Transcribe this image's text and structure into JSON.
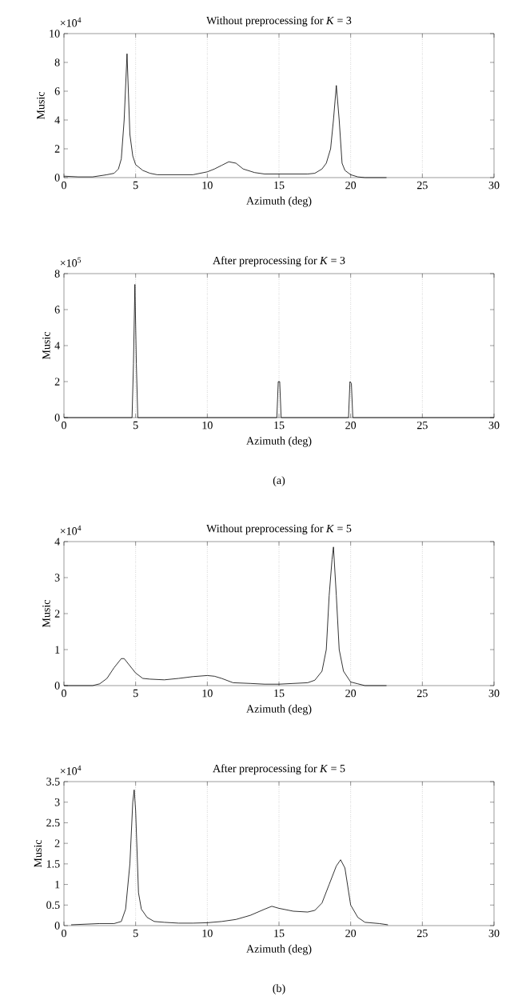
{
  "chart_data": [
    {
      "type": "line",
      "title": "Without preprocessing for *K* = 3",
      "xlabel": "Azimuth (deg)",
      "ylabel": "Music",
      "color": "#000000",
      "line_style": "solid",
      "grid": false,
      "x": [
        0,
        1,
        2,
        3,
        3.5,
        3.8,
        4.0,
        4.2,
        4.4,
        4.6,
        4.8,
        5.0,
        5.5,
        6,
        6.5,
        8,
        9,
        10,
        10.5,
        11,
        11.5,
        12,
        12.5,
        13.3,
        14,
        15,
        16,
        17,
        17.5,
        18,
        18.3,
        18.6,
        18.8,
        19.0,
        19.2,
        19.4,
        19.6,
        20,
        20.5,
        21,
        22.5
      ],
      "values": [
        0.1,
        0.05,
        0.05,
        0.2,
        0.3,
        0.6,
        1.3,
        4,
        8.6,
        3,
        1.5,
        0.9,
        0.5,
        0.3,
        0.2,
        0.2,
        0.2,
        0.4,
        0.6,
        0.85,
        1.1,
        1.0,
        0.6,
        0.35,
        0.25,
        0.25,
        0.25,
        0.25,
        0.3,
        0.6,
        1.0,
        2,
        4,
        6.4,
        4,
        1,
        0.5,
        0.2,
        0.05,
        0,
        0
      ],
      "xlim": [
        0,
        30
      ],
      "xticks": [
        0,
        5,
        10,
        15,
        20,
        25,
        30
      ],
      "ylim": [
        0,
        10
      ],
      "yticks": [
        0,
        2,
        4,
        6,
        8,
        10
      ],
      "ref_lines": [
        {
          "axis": "x",
          "value": 5,
          "line_style": "dotted"
        },
        {
          "axis": "x",
          "value": 10,
          "line_style": "dotted"
        },
        {
          "axis": "x",
          "value": 15,
          "line_style": "dotted"
        },
        {
          "axis": "x",
          "value": 20,
          "line_style": "dotted"
        },
        {
          "axis": "x",
          "value": 25,
          "line_style": "dotted"
        }
      ],
      "annotations": [
        "×10$^{4}$"
      ]
    },
    {
      "type": "line",
      "title": "After preprocessing for *K* = 3",
      "xlabel": "Azimuth (deg)",
      "ylabel": "Music",
      "color": "#000000",
      "line_style": "solid",
      "grid": false,
      "x": [
        0,
        4.75,
        4.85,
        4.95,
        5.05,
        5.15,
        14.85,
        14.95,
        15.05,
        15.15,
        19.85,
        19.95,
        20.05,
        20.15,
        30
      ],
      "values": [
        0,
        0,
        3,
        7.4,
        3,
        0,
        0,
        2,
        2,
        0,
        0,
        2,
        1.9,
        0,
        0
      ],
      "xlim": [
        0,
        30
      ],
      "xticks": [
        0,
        5,
        10,
        15,
        20,
        25,
        30
      ],
      "ylim": [
        0,
        8
      ],
      "yticks": [
        0,
        2,
        4,
        6,
        8
      ],
      "ref_lines": [
        {
          "axis": "x",
          "value": 5,
          "line_style": "dotted"
        },
        {
          "axis": "x",
          "value": 10,
          "line_style": "dotted"
        },
        {
          "axis": "x",
          "value": 15,
          "line_style": "dotted"
        },
        {
          "axis": "x",
          "value": 20,
          "line_style": "dotted"
        },
        {
          "axis": "x",
          "value": 25,
          "line_style": "dotted"
        }
      ],
      "annotations": [
        "×10$^{5}$",
        "(a)"
      ]
    },
    {
      "type": "line",
      "title": "Without preprocessing for *K* = 5",
      "xlabel": "Azimuth (deg)",
      "ylabel": "Music",
      "color": "#000000",
      "line_style": "solid",
      "grid": false,
      "x": [
        0,
        2,
        2.5,
        3,
        3.5,
        4,
        4.2,
        4.5,
        5,
        5.5,
        6,
        7,
        8,
        9,
        10,
        10.5,
        11,
        11.8,
        13,
        14,
        15,
        16,
        17,
        17.5,
        18,
        18.3,
        18.5,
        18.7,
        18.8,
        19,
        19.2,
        19.5,
        20,
        20.5,
        21,
        22.5
      ],
      "values": [
        0,
        0,
        0.05,
        0.2,
        0.5,
        0.75,
        0.75,
        0.6,
        0.35,
        0.2,
        0.18,
        0.16,
        0.2,
        0.25,
        0.28,
        0.26,
        0.2,
        0.08,
        0.06,
        0.04,
        0.04,
        0.06,
        0.08,
        0.15,
        0.4,
        1,
        2.5,
        3.5,
        3.85,
        2.5,
        1,
        0.4,
        0.1,
        0.05,
        0,
        0
      ],
      "xlim": [
        0,
        30
      ],
      "xticks": [
        0,
        5,
        10,
        15,
        20,
        25,
        30
      ],
      "ylim": [
        0,
        4
      ],
      "yticks": [
        0,
        1,
        2,
        3,
        4
      ],
      "ref_lines": [
        {
          "axis": "x",
          "value": 5,
          "line_style": "dotted"
        },
        {
          "axis": "x",
          "value": 10,
          "line_style": "dotted"
        },
        {
          "axis": "x",
          "value": 15,
          "line_style": "dotted"
        },
        {
          "axis": "x",
          "value": 20,
          "line_style": "dotted"
        },
        {
          "axis": "x",
          "value": 25,
          "line_style": "dotted"
        }
      ],
      "annotations": [
        "×10$^{4}$"
      ]
    },
    {
      "type": "line",
      "title": "After preprocessing for *K* = 5",
      "xlabel": "Azimuth (deg)",
      "ylabel": "Music",
      "color": "#000000",
      "line_style": "solid",
      "grid": false,
      "x": [
        0.5,
        2.5,
        3.5,
        4,
        4.3,
        4.6,
        4.8,
        4.9,
        5.0,
        5.2,
        5.4,
        5.8,
        6.3,
        7,
        8,
        9,
        10,
        11,
        12,
        13,
        14,
        14.5,
        15,
        16,
        17,
        17.5,
        18,
        18.5,
        19,
        19.3,
        19.6,
        20,
        20.5,
        21,
        22,
        22.6
      ],
      "values": [
        0.02,
        0.05,
        0.05,
        0.1,
        0.4,
        1.5,
        3.0,
        3.3,
        2.8,
        0.8,
        0.4,
        0.2,
        0.1,
        0.08,
        0.06,
        0.06,
        0.07,
        0.1,
        0.15,
        0.25,
        0.4,
        0.47,
        0.42,
        0.35,
        0.33,
        0.37,
        0.55,
        1.0,
        1.45,
        1.6,
        1.4,
        0.5,
        0.2,
        0.08,
        0.05,
        0.02
      ],
      "xlim": [
        0,
        30
      ],
      "xticks": [
        0,
        5,
        10,
        15,
        20,
        25,
        30
      ],
      "ylim": [
        0,
        3.5
      ],
      "yticks": [
        0,
        0.5,
        1,
        1.5,
        2,
        2.5,
        3,
        3.5
      ],
      "ref_lines": [
        {
          "axis": "x",
          "value": 5,
          "line_style": "dotted"
        },
        {
          "axis": "x",
          "value": 10,
          "line_style": "dotted"
        },
        {
          "axis": "x",
          "value": 15,
          "line_style": "dotted"
        },
        {
          "axis": "x",
          "value": 20,
          "line_style": "dotted"
        },
        {
          "axis": "x",
          "value": 25,
          "line_style": "dotted"
        }
      ],
      "annotations": [
        "×10$^{4}$",
        "(b)"
      ]
    }
  ]
}
